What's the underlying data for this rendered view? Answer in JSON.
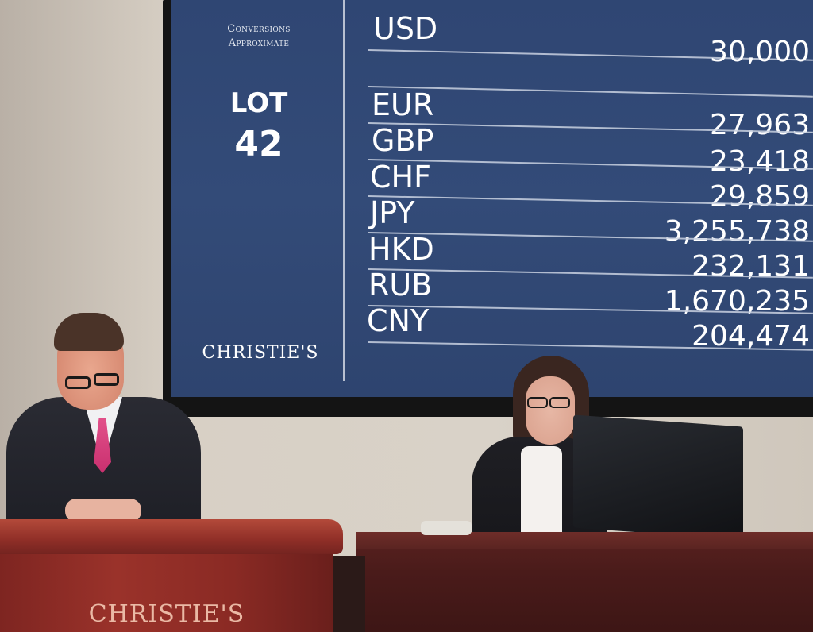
{
  "screen": {
    "note_line1": "Conversions",
    "note_line2": "Approximate",
    "lot_label": "LOT",
    "lot_number": "42",
    "brand": "CHRISTIE'S",
    "primary": {
      "code": "USD",
      "value": "30,000"
    },
    "conversions": [
      {
        "code": "EUR",
        "value": "27,963"
      },
      {
        "code": "GBP",
        "value": "23,418"
      },
      {
        "code": "CHF",
        "value": "29,859"
      },
      {
        "code": "JPY",
        "value": "3,255,738"
      },
      {
        "code": "HKD",
        "value": "232,131"
      },
      {
        "code": "RUB",
        "value": "1,670,235"
      },
      {
        "code": "CNY",
        "value": "204,474"
      }
    ]
  },
  "podium": {
    "brand": "CHRISTIE'S"
  },
  "colors": {
    "screen_bg": "#2f4673",
    "podium": "#8a2a24",
    "desk": "#4a1b1a"
  }
}
